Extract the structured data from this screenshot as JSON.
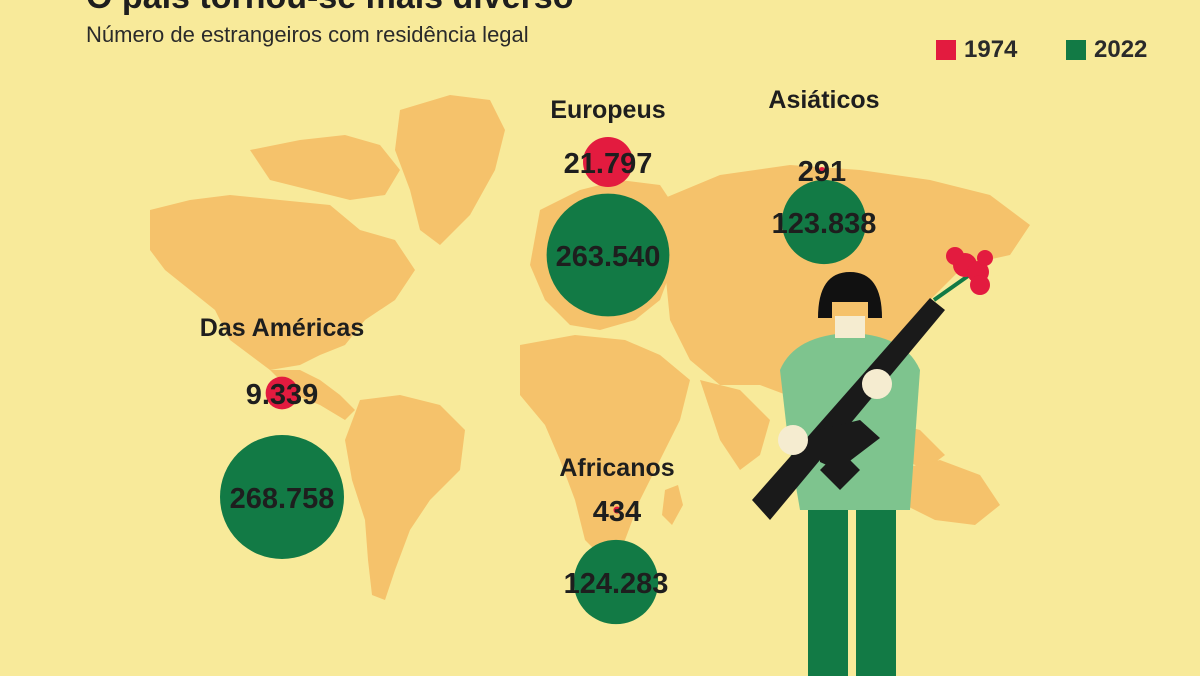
{
  "title_partial": "O país tornou-se mais diverso",
  "subtitle": "Número de estrangeiros com residência legal",
  "legend": [
    {
      "label": "1974",
      "color": "#e31b3f"
    },
    {
      "label": "2022",
      "color": "#127a45"
    }
  ],
  "colors": {
    "background": "#f8ea9a",
    "land": "#f5c26b",
    "red": "#e31b3f",
    "green": "#127a45"
  },
  "chart_data": {
    "type": "bubble-map",
    "categories": [
      "Europeus",
      "Asiáticos",
      "Das Américas",
      "Africanos"
    ],
    "series": [
      {
        "name": "1974",
        "values": [
          21797,
          291,
          9339,
          434
        ]
      },
      {
        "name": "2022",
        "values": [
          263540,
          123838,
          268758,
          124283
        ]
      }
    ],
    "value_labels": {
      "1974": [
        "21.797",
        "291",
        "9.339",
        "434"
      ],
      "2022": [
        "263.540",
        "123.838",
        "268.758",
        "124.283"
      ]
    }
  }
}
